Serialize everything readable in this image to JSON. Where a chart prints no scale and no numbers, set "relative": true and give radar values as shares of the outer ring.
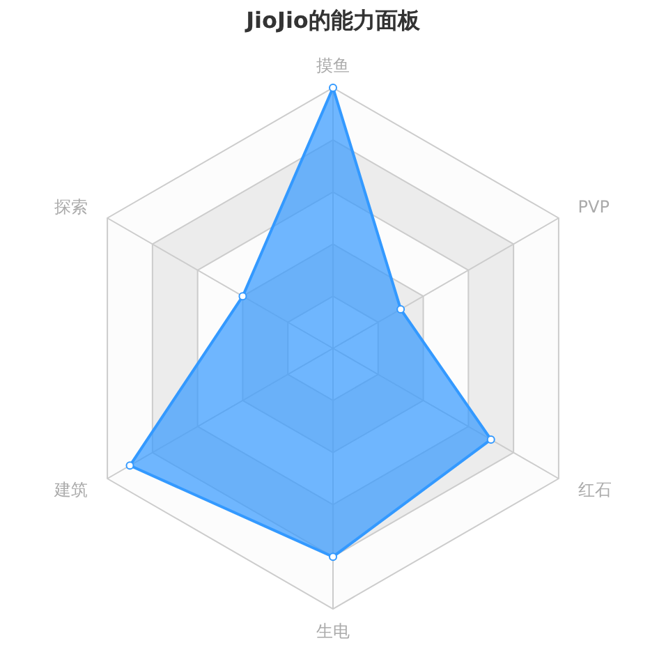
{
  "chart_data": {
    "type": "radar",
    "title": "JioJio的能力面板",
    "categories": [
      "摸鱼",
      "PVP",
      "红石",
      "生电",
      "建筑",
      "探索"
    ],
    "relative": true,
    "grid": true,
    "marker": "circle",
    "series": [
      {
        "color": "#3399ff",
        "values": [
          1.0,
          0.3,
          0.7,
          0.8,
          0.9,
          0.4
        ]
      }
    ]
  }
}
